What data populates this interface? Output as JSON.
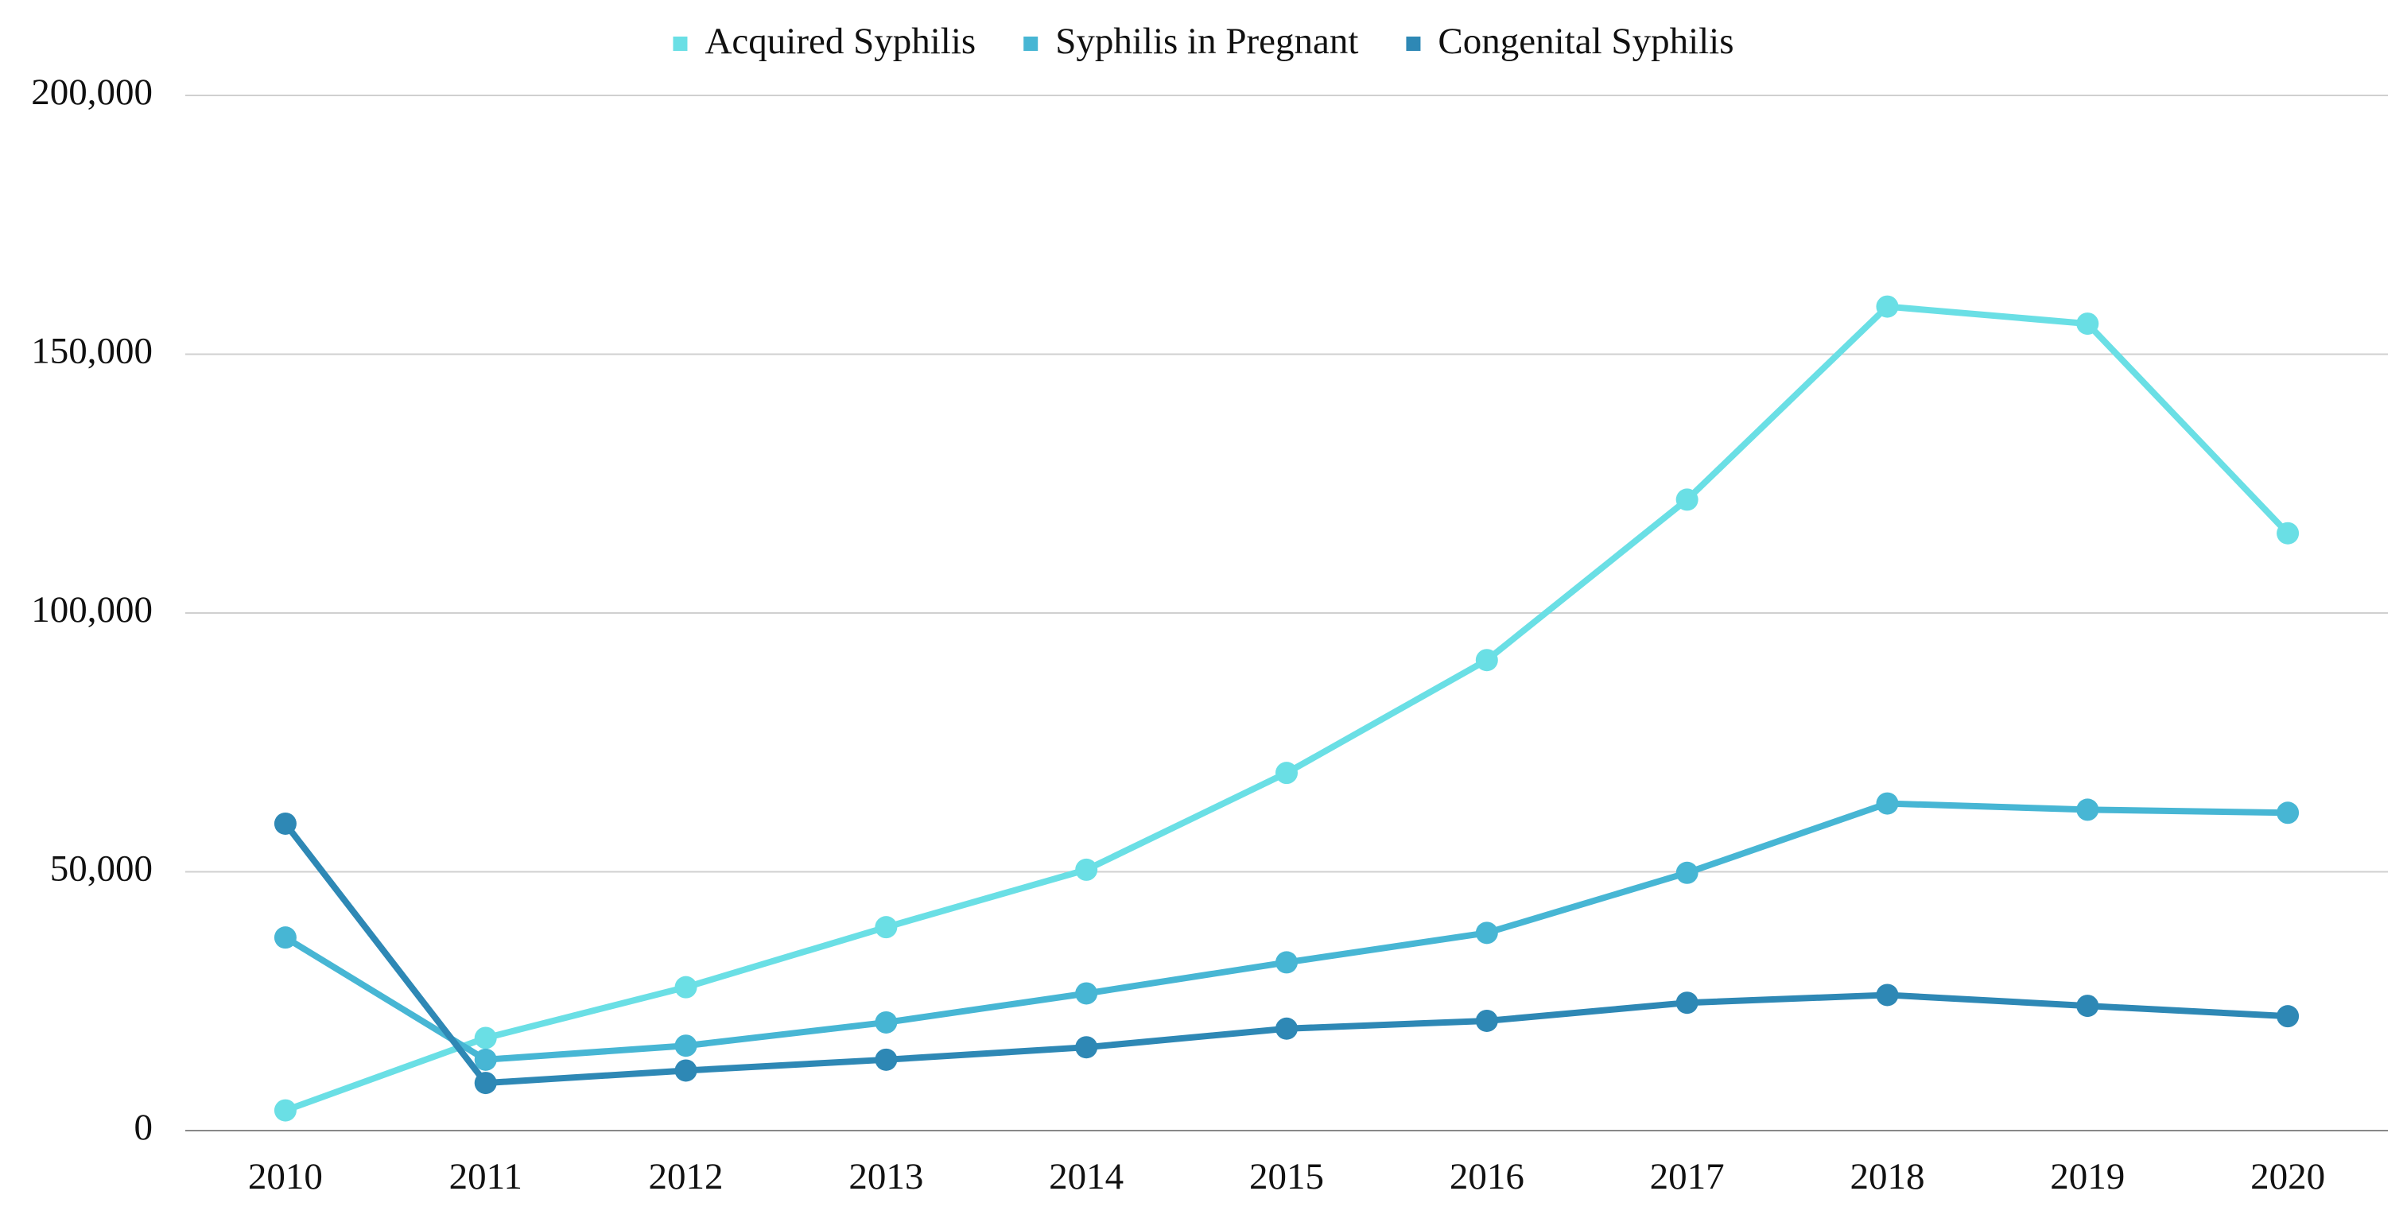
{
  "chart_data": {
    "type": "line",
    "categories": [
      "2010",
      "2011",
      "2012",
      "2013",
      "2014",
      "2015",
      "2016",
      "2017",
      "2018",
      "2019",
      "2020"
    ],
    "series": [
      {
        "name": "Acquired Syphilis",
        "color": "#6adfe5",
        "values": [
          3900,
          17900,
          27700,
          39300,
          50400,
          69100,
          90900,
          121900,
          159200,
          155900,
          115400
        ]
      },
      {
        "name": "Syphilis in Pregnant",
        "color": "#47b6d4",
        "values": [
          37300,
          13700,
          16400,
          20900,
          26500,
          32500,
          38200,
          49800,
          63200,
          62000,
          61400
        ]
      },
      {
        "name": "Congenital Syphilis",
        "color": "#2e88b5",
        "values": [
          59300,
          9200,
          11600,
          13700,
          16100,
          19700,
          21200,
          24700,
          26200,
          24100,
          22100
        ]
      }
    ],
    "ylim": [
      0,
      200000
    ],
    "yticks": [
      0,
      {
        "value": 50000,
        "label": "50,000"
      },
      {
        "value": 100000,
        "label": "100,000"
      },
      {
        "value": 150000,
        "label": "150,000"
      },
      {
        "value": 200000,
        "label": "200,000"
      }
    ],
    "grid": true,
    "legend": "top"
  }
}
